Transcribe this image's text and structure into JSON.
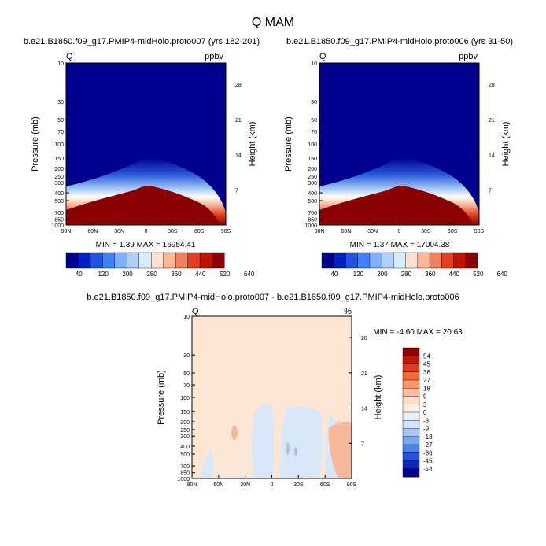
{
  "figure": {
    "title": "Q MAM"
  },
  "chart_data": [
    {
      "type": "heatmap",
      "title": "b.e21.B1850.f09_g17.PMIP4-midHolo.proto007 (yrs 182-201)",
      "corner_left": "Q",
      "corner_right": "ppbv",
      "xlabel": "",
      "ylabel": "Pressure (mb)",
      "ylabel_right": "Height (km)",
      "x_ticks": [
        "90N",
        "60N",
        "30N",
        "0",
        "30S",
        "60S",
        "90S"
      ],
      "y_ticks": [
        "10",
        "30",
        "50",
        "70",
        "100",
        "150",
        "200",
        "250",
        "300",
        "400",
        "500",
        "700",
        "850",
        "1000"
      ],
      "y_scale": "log",
      "right_ticks": [
        "28",
        "21",
        "14",
        "7"
      ],
      "stats": "MIN =   1.39  MAX = 16954.41",
      "colorbar_labels": [
        "40",
        "120",
        "200",
        "280",
        "360",
        "440",
        "520",
        "640"
      ],
      "colorbar_colors": [
        "#00008f",
        "#0020c0",
        "#2050e0",
        "#4080ff",
        "#80b0ff",
        "#b0d0ff",
        "#d8ecff",
        "#fde0d0",
        "#f8b898",
        "#f08060",
        "#e04020",
        "#c01000",
        "#8b0000"
      ],
      "background_color": "#00008f",
      "fill_color": "#8b0000"
    },
    {
      "type": "heatmap",
      "title": "b.e21.B1850.f09_g17.PMIP4-midHolo.proto006 (yrs 31-50)",
      "corner_left": "Q",
      "corner_right": "ppbv",
      "xlabel": "",
      "ylabel": "Pressure (mb)",
      "ylabel_right": "Height (km)",
      "x_ticks": [
        "90N",
        "60N",
        "30N",
        "0",
        "30S",
        "60S",
        "90S"
      ],
      "y_ticks": [
        "10",
        "30",
        "50",
        "70",
        "100",
        "150",
        "200",
        "250",
        "300",
        "400",
        "500",
        "700",
        "850",
        "1000"
      ],
      "y_scale": "log",
      "right_ticks": [
        "28",
        "21",
        "14",
        "7"
      ],
      "stats": "MIN =   1.37  MAX = 17004.38",
      "colorbar_labels": [
        "40",
        "120",
        "200",
        "280",
        "360",
        "440",
        "520",
        "640"
      ],
      "colorbar_colors": [
        "#00008f",
        "#0020c0",
        "#2050e0",
        "#4080ff",
        "#80b0ff",
        "#b0d0ff",
        "#d8ecff",
        "#fde0d0",
        "#f8b898",
        "#f08060",
        "#e04020",
        "#c01000",
        "#8b0000"
      ],
      "background_color": "#00008f",
      "fill_color": "#8b0000"
    },
    {
      "type": "heatmap",
      "title": "b.e21.B1850.f09_g17.PMIP4-midHolo.proto007 - b.e21.B1850.f09_g17.PMIP4-midHolo.proto006",
      "corner_left": "Q",
      "corner_right": "%",
      "xlabel": "",
      "ylabel": "Pressure (mb)",
      "ylabel_right": "Height (km)",
      "x_ticks": [
        "90N",
        "60N",
        "30N",
        "0",
        "30S",
        "60S",
        "90S"
      ],
      "y_ticks": [
        "10",
        "30",
        "50",
        "70",
        "100",
        "150",
        "200",
        "250",
        "300",
        "400",
        "500",
        "700",
        "850",
        "1000"
      ],
      "y_scale": "log",
      "right_ticks": [
        "28",
        "21",
        "14",
        "7"
      ],
      "stats": "MIN =  -4.60  MAX =  20.63",
      "colorbar_labels": [
        "54",
        "45",
        "36",
        "27",
        "18",
        "9",
        "3",
        "0",
        "-3",
        "-9",
        "-18",
        "-27",
        "-36",
        "-45",
        "-54"
      ],
      "colorbar_colors": [
        "#8b0000",
        "#c81400",
        "#e03c14",
        "#ef6a3a",
        "#f6946a",
        "#fbbfa0",
        "#fde0cc",
        "#fdeee2",
        "#e8f0fb",
        "#d0e4fb",
        "#a8c8f4",
        "#7aa6ee",
        "#4e82e6",
        "#2454d8",
        "#1028b0",
        "#00008f"
      ],
      "background_color": "#fde6d4"
    }
  ]
}
